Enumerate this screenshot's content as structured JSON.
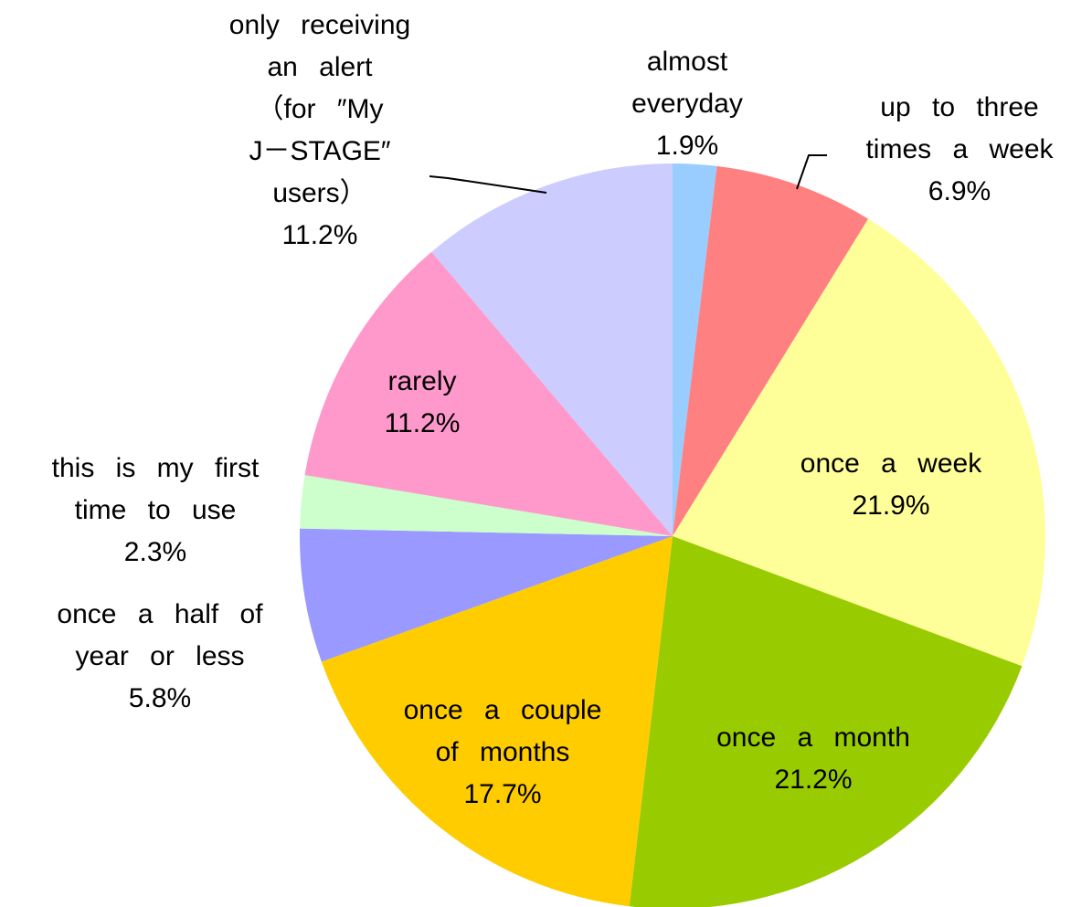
{
  "chart_data": {
    "type": "pie",
    "categories": [
      "almost\neveryday",
      "up to three\ntimes a week",
      "once a week",
      "once a month",
      "once a couple\nof months",
      "once a half of\nyear or less",
      "this is my first\ntime to use",
      "rarely",
      "only receiving\nan alert\n（for ″My\nJ－STAGE″\nusers）"
    ],
    "values": [
      1.9,
      6.9,
      21.9,
      21.2,
      17.7,
      5.8,
      2.3,
      11.2,
      11.2
    ],
    "value_labels": [
      "1.9%",
      "6.9%",
      "21.9%",
      "21.2%",
      "17.7%",
      "5.8%",
      "2.3%",
      "11.2%",
      "11.2%"
    ],
    "colors": [
      "#99ccff",
      "#ff8080",
      "#ffff99",
      "#99cc00",
      "#ffcc00",
      "#9999ff",
      "#ccffcc",
      "#ff99cc",
      "#ccccff"
    ]
  }
}
